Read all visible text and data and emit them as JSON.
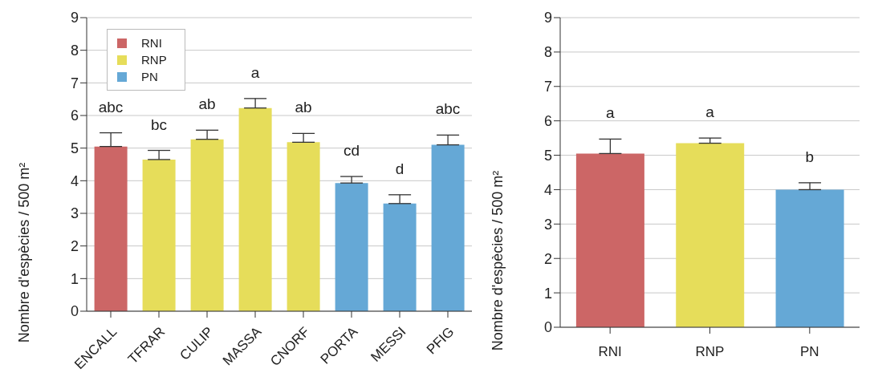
{
  "chart_data": [
    {
      "type": "bar",
      "ylabel": "Nombre d'espècies / 500 m²",
      "categories": [
        "ENCALL",
        "TFRAR",
        "CULIP",
        "MASSA",
        "CNORF",
        "PORTA",
        "MESSI",
        "PFIG"
      ],
      "stacked": true,
      "ylim": [
        0,
        9
      ],
      "yticks": [
        0,
        1,
        2,
        3,
        4,
        5,
        6,
        7,
        8,
        9
      ],
      "grid": "y",
      "legend": "top left",
      "series": [
        {
          "name": "RNI",
          "color": "#cc6666",
          "values": [
            5.05,
            null,
            null,
            null,
            null,
            null,
            null,
            null
          ],
          "errors": [
            [
              5.05,
              5.47
            ],
            null,
            null,
            null,
            null,
            null,
            null,
            null
          ]
        },
        {
          "name": "RNP",
          "color": "#e6dd5a",
          "values": [
            null,
            4.65,
            5.27,
            6.23,
            5.18,
            null,
            null,
            null
          ],
          "errors": [
            null,
            [
              4.65,
              4.93
            ],
            [
              5.27,
              5.55
            ],
            [
              6.23,
              6.52
            ],
            [
              5.18,
              5.45
            ],
            null,
            null,
            null
          ]
        },
        {
          "name": "PN",
          "color": "#65a8d6",
          "values": [
            null,
            null,
            null,
            null,
            null,
            3.93,
            3.3,
            5.1
          ],
          "errors": [
            null,
            null,
            null,
            null,
            null,
            [
              3.93,
              4.13
            ],
            [
              3.3,
              3.57
            ],
            [
              5.1,
              5.4
            ]
          ]
        }
      ],
      "annotations": [
        "abc",
        "bc",
        "ab",
        "a",
        "ab",
        "cd",
        "d",
        "abc"
      ]
    },
    {
      "type": "bar",
      "ylabel": "Nombre d'espècies / 500 m²",
      "categories": [
        "RNI",
        "RNP",
        "PN"
      ],
      "ylim": [
        0,
        9
      ],
      "yticks": [
        0,
        1,
        2,
        3,
        4,
        5,
        6,
        7,
        8,
        9
      ],
      "grid": "y",
      "legend": false,
      "series": [
        {
          "values": [
            5.05,
            5.35,
            4.0
          ],
          "colors": [
            "#cc6666",
            "#e6dd5a",
            "#65a8d6"
          ],
          "errors": [
            [
              5.05,
              5.47
            ],
            [
              5.35,
              5.5
            ],
            [
              4.0,
              4.2
            ]
          ]
        }
      ],
      "annotations": [
        "a",
        "a",
        "b"
      ]
    }
  ]
}
